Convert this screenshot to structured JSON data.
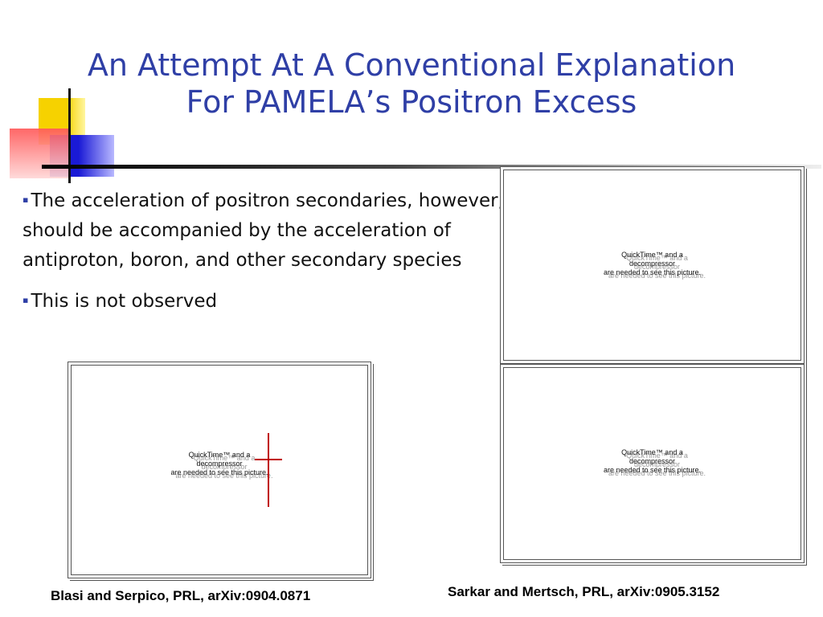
{
  "slide": {
    "title_line1": "An Attempt At A Conventional Explanation",
    "title_line2": "For PAMELA’s Positron Excess",
    "bullets": [
      "The acceleration of positron secondaries, however, should be accompanied by the acceleration of antiproton, boron, and other secondary species",
      "This is not observed"
    ],
    "bullet_marker": "▪",
    "placeholder": {
      "line1": "QuickTime™ and a",
      "line2": "decompressor",
      "line3": "are needed to see this picture."
    },
    "captions": {
      "left": "Blasi and Serpico, PRL, arXiv:0904.0871",
      "right": "Sarkar and Mertsch, PRL, arXiv:0905.3152"
    },
    "colors": {
      "title": "#2f3fa6",
      "accent_yellow": "#f6d200",
      "accent_blue": "#1a1ad6",
      "accent_red": "#ff5a5a",
      "crosshair": "#c00000"
    }
  }
}
